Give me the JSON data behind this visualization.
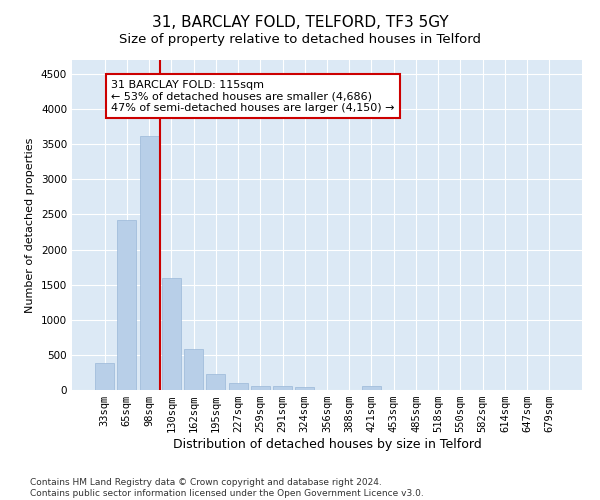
{
  "title": "31, BARCLAY FOLD, TELFORD, TF3 5GY",
  "subtitle": "Size of property relative to detached houses in Telford",
  "xlabel": "Distribution of detached houses by size in Telford",
  "ylabel": "Number of detached properties",
  "categories": [
    "33sqm",
    "65sqm",
    "98sqm",
    "130sqm",
    "162sqm",
    "195sqm",
    "227sqm",
    "259sqm",
    "291sqm",
    "324sqm",
    "356sqm",
    "388sqm",
    "421sqm",
    "453sqm",
    "485sqm",
    "518sqm",
    "550sqm",
    "582sqm",
    "614sqm",
    "647sqm",
    "679sqm"
  ],
  "values": [
    380,
    2420,
    3620,
    1590,
    590,
    230,
    105,
    60,
    50,
    40,
    0,
    0,
    50,
    0,
    0,
    0,
    0,
    0,
    0,
    0,
    0
  ],
  "bar_color": "#b8cfe8",
  "bar_edgecolor": "#9ab8d8",
  "vline_color": "#cc0000",
  "annotation_text": "31 BARCLAY FOLD: 115sqm\n← 53% of detached houses are smaller (4,686)\n47% of semi-detached houses are larger (4,150) →",
  "annotation_box_edgecolor": "#cc0000",
  "annotation_box_facecolor": "#ffffff",
  "ylim": [
    0,
    4700
  ],
  "yticks": [
    0,
    500,
    1000,
    1500,
    2000,
    2500,
    3000,
    3500,
    4000,
    4500
  ],
  "plot_bg_color": "#dce9f5",
  "footer": "Contains HM Land Registry data © Crown copyright and database right 2024.\nContains public sector information licensed under the Open Government Licence v3.0.",
  "title_fontsize": 11,
  "subtitle_fontsize": 9.5,
  "xlabel_fontsize": 9,
  "ylabel_fontsize": 8,
  "tick_fontsize": 7.5,
  "annotation_fontsize": 8,
  "footer_fontsize": 6.5
}
